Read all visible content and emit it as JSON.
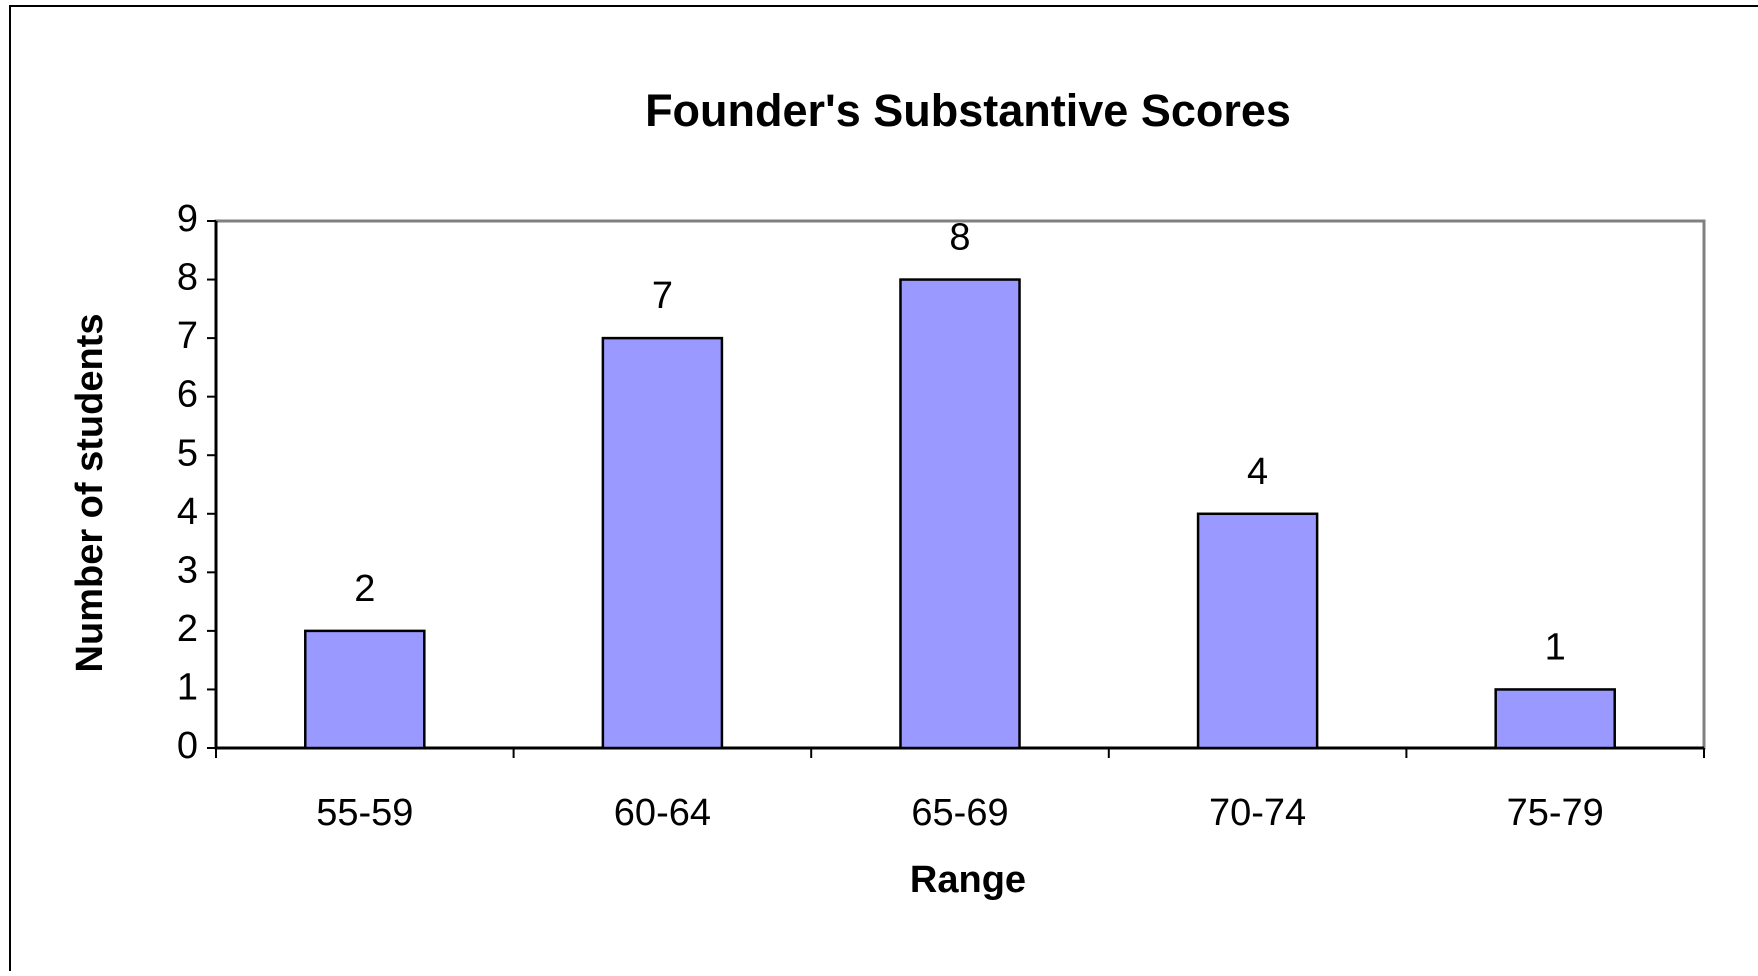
{
  "chart_data": {
    "type": "bar",
    "title": "Founder's  Substantive Scores",
    "x_label": "Range",
    "y_label": "Number of students",
    "categories": [
      "55-59",
      "60-64",
      "65-69",
      "70-74",
      "75-79"
    ],
    "values": [
      2,
      7,
      8,
      4,
      1
    ],
    "color": "#9999ff",
    "ylim": [
      0,
      9
    ],
    "yticks": [
      0,
      1,
      2,
      3,
      4,
      5,
      6,
      7,
      8,
      9
    ],
    "grid": false
  }
}
